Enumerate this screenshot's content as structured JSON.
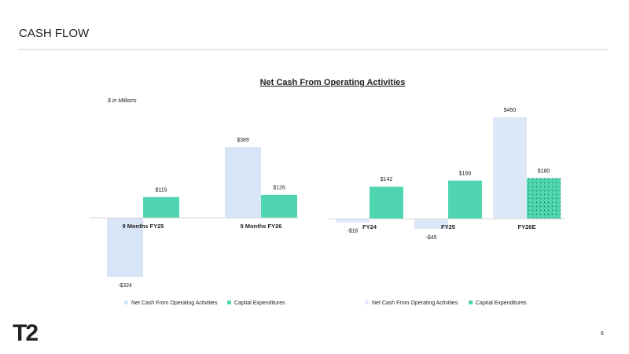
{
  "header": {
    "title": "CASH FLOW"
  },
  "chart_title": "Net Cash From Operating Activities",
  "units_note": "$ in Millions",
  "chart_data": [
    {
      "type": "bar",
      "categories": [
        "9 Months FY25",
        "9 Months FY26"
      ],
      "series": [
        {
          "name": "Net Cash From Operating Activities",
          "color": "#d7e5f6",
          "values": [
            -324,
            389
          ],
          "value_labels": [
            "-$324",
            "$389"
          ]
        },
        {
          "name": "Capital Expenditures",
          "color": "#4fd6b0",
          "values": [
            115,
            126
          ],
          "value_labels": [
            "$115",
            "$126"
          ]
        }
      ]
    },
    {
      "type": "bar",
      "categories": [
        "FY24",
        "FY25",
        "FY26E"
      ],
      "series": [
        {
          "name": "Net Cash From Operating Activities",
          "color": "#dce8f7",
          "values": [
            -16,
            -45,
            450
          ],
          "value_labels": [
            "-$16",
            "-$45",
            "$450"
          ]
        },
        {
          "name": "Capital Expenditures",
          "color": "#4fd6b0",
          "values": [
            142,
            169,
            180
          ],
          "value_labels": [
            "$142",
            "$169",
            "$180"
          ],
          "dotted": [
            false,
            false,
            true
          ]
        }
      ]
    }
  ],
  "footer": {
    "logo": "T2",
    "page_number": 6
  }
}
